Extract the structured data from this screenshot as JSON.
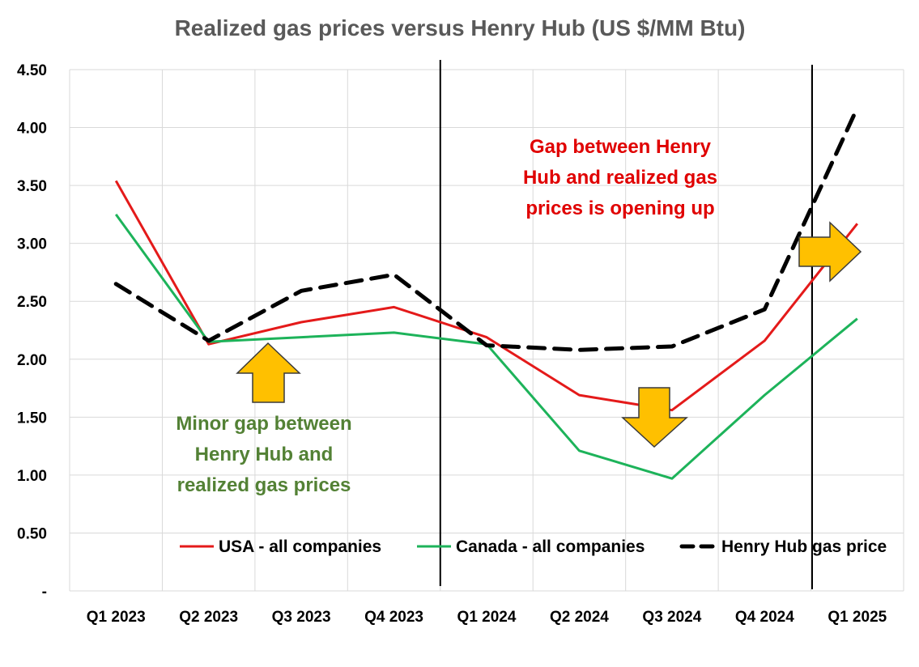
{
  "chart_data": {
    "type": "line",
    "title": "Realized gas prices versus Henry Hub (US $/MM Btu)",
    "xlabel": "",
    "ylabel": "",
    "categories": [
      "Q1 2023",
      "Q2 2023",
      "Q3 2023",
      "Q4 2023",
      "Q1 2024",
      "Q2 2024",
      "Q3 2024",
      "Q4 2024",
      "Q1 2025"
    ],
    "y_ticks": [
      "-",
      "0.50",
      "1.00",
      "1.50",
      "2.00",
      "2.50",
      "3.00",
      "3.50",
      "4.00",
      "4.50"
    ],
    "ylim": [
      0,
      4.5
    ],
    "grid": true,
    "legend_position": "bottom-right",
    "series": [
      {
        "name": "USA - all companies",
        "color": "#e41a1a",
        "dash": "solid",
        "values": [
          3.54,
          2.13,
          2.32,
          2.45,
          2.19,
          1.69,
          1.56,
          2.16,
          3.17
        ]
      },
      {
        "name": "Canada - all companies",
        "color": "#1db35a",
        "dash": "solid",
        "values": [
          3.25,
          2.15,
          2.19,
          2.23,
          2.13,
          1.21,
          0.97,
          1.69,
          2.35
        ]
      },
      {
        "name": "Henry Hub gas price",
        "color": "#000000",
        "dash": "dashed",
        "values": [
          2.65,
          2.16,
          2.59,
          2.73,
          2.12,
          2.08,
          2.11,
          2.43,
          4.17
        ]
      }
    ],
    "annotations": {
      "red_text": [
        "Gap between Henry",
        "Hub and realized gas",
        "prices is opening up"
      ],
      "green_text": [
        "Minor gap between",
        "Henry Hub and",
        "realized gas prices"
      ]
    },
    "arrow_color": "#ffc000"
  }
}
